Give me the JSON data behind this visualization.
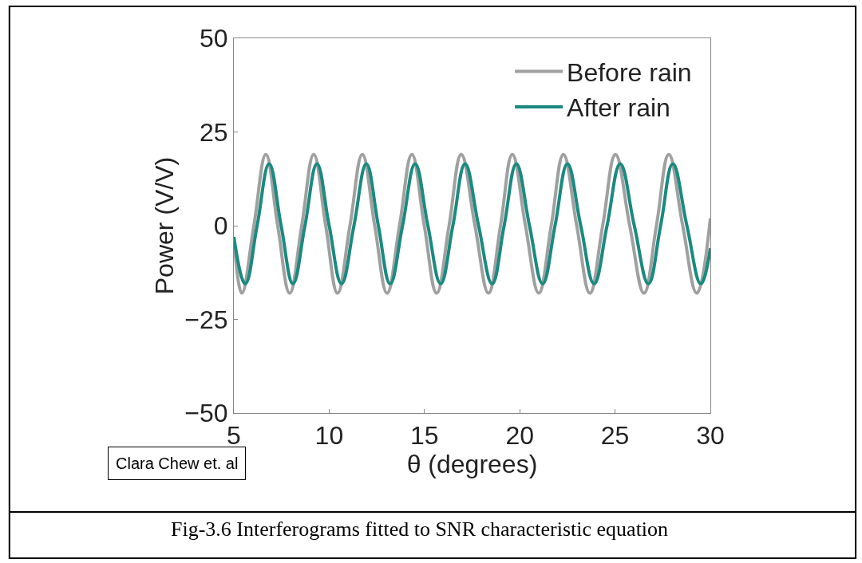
{
  "chart_data": {
    "type": "line",
    "xlabel": "θ (degrees)",
    "ylabel": "Power (V/V)",
    "xlim": [
      5,
      30
    ],
    "xticks": [
      5,
      10,
      15,
      20,
      25,
      30
    ],
    "ylim": [
      -50,
      50
    ],
    "yticks": [
      -50,
      -25,
      0,
      25,
      50
    ],
    "grid": false,
    "legend": "top right",
    "marker": "none",
    "line_style": "solid",
    "annotations": [
      "Clara Chew et. al",
      "Fig-3.6 Interferograms fitted to SNR characteristic equation"
    ],
    "series": [
      {
        "name": "Before rain",
        "color": "#a0a0a0",
        "x": [
          5,
          5.42,
          6.05,
          6.68,
          7.3,
          7.93,
          8.56,
          9.19,
          9.82,
          10.44,
          11.09,
          11.74,
          12.39,
          13.04,
          13.69,
          14.34,
          14.99,
          15.64,
          16.29,
          16.93,
          17.65,
          18.36,
          18.99,
          19.61,
          20.3,
          21.0,
          21.65,
          22.29,
          22.99,
          23.68,
          24.35,
          25.02,
          25.77,
          26.52,
          27.17,
          27.82,
          28.55,
          29.29,
          30
        ],
        "values": [
          -3,
          -18,
          0,
          19,
          0,
          -18,
          0,
          19,
          0,
          -18,
          0,
          19,
          0,
          -18,
          0,
          19,
          0,
          -18,
          0,
          19,
          0,
          -18,
          0,
          19,
          0,
          -18,
          0,
          19,
          0,
          -18,
          0,
          19,
          0,
          -18,
          0,
          19,
          0,
          -18,
          2
        ]
      },
      {
        "name": "After rain",
        "color": "#1a8a80",
        "x": [
          5,
          5.6,
          6.22,
          6.85,
          7.48,
          8.1,
          8.73,
          9.36,
          10.0,
          10.65,
          11.3,
          11.95,
          12.58,
          13.2,
          13.85,
          14.51,
          15.18,
          15.85,
          16.49,
          17.13,
          17.84,
          18.55,
          19.18,
          19.82,
          20.51,
          21.2,
          21.85,
          22.5,
          23.2,
          23.9,
          24.58,
          25.27,
          26.01,
          26.75,
          27.39,
          28.03,
          28.77,
          29.5,
          30
        ],
        "values": [
          -3,
          -15.5,
          0,
          16.5,
          0,
          -15.5,
          0,
          16.5,
          0,
          -15.5,
          0,
          16.5,
          0,
          -15.5,
          0,
          16.5,
          0,
          -15.5,
          0,
          16.5,
          0,
          -15.5,
          0,
          16.5,
          0,
          -15.5,
          0,
          16.5,
          0,
          -15.5,
          0,
          16.5,
          0,
          -15.5,
          0,
          16.5,
          0,
          -15.5,
          -6
        ]
      }
    ]
  }
}
